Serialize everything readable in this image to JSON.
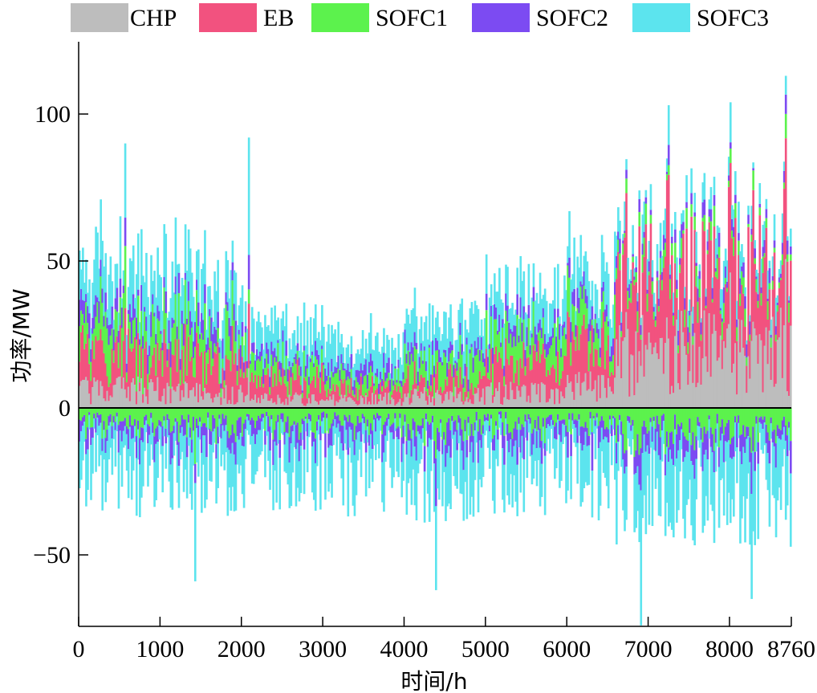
{
  "chart_data": {
    "type": "bar",
    "subtype": "stacked-positive-negative",
    "xlabel": "时间/h",
    "ylabel": "功率/MW",
    "xlim": [
      0,
      8760
    ],
    "ylim": [
      -74,
      125
    ],
    "x_ticks": [
      0,
      1000,
      2000,
      3000,
      4000,
      5000,
      6000,
      7000,
      8000,
      8760
    ],
    "x_tick_labels": [
      "0",
      "1000",
      "2000",
      "3000",
      "4000",
      "5000",
      "6000",
      "7000",
      "8000",
      "8760"
    ],
    "y_ticks": [
      -50,
      0,
      50,
      100
    ],
    "y_tick_labels": [
      "−50",
      "0",
      "50",
      "100"
    ],
    "legend_position": "top",
    "series": [
      {
        "name": "CHP",
        "color": "#bdbdbd"
      },
      {
        "name": "EB",
        "color": "#f2527f"
      },
      {
        "name": "SOFC1",
        "color": "#5cf24d"
      },
      {
        "name": "SOFC2",
        "color": "#7c4bf2"
      },
      {
        "name": "SOFC3",
        "color": "#5ce4ee"
      }
    ],
    "segments": [
      {
        "x_range": [
          0,
          1000
        ],
        "CHP": 6,
        "EB": 12,
        "SOFC1": 10,
        "SOFC2": 5,
        "SOFC3": 13,
        "SOFC_neg": -22
      },
      {
        "x_range": [
          1000,
          2000
        ],
        "CHP": 5,
        "EB": 12,
        "SOFC1": 10,
        "SOFC2": 5,
        "SOFC3": 13,
        "SOFC_neg": -22
      },
      {
        "x_range": [
          2000,
          3000
        ],
        "CHP": 3,
        "EB": 7,
        "SOFC1": 6,
        "SOFC2": 3,
        "SOFC3": 9,
        "SOFC_neg": -21
      },
      {
        "x_range": [
          3000,
          4000
        ],
        "CHP": 3,
        "EB": 4,
        "SOFC1": 4,
        "SOFC2": 3,
        "SOFC3": 8,
        "SOFC_neg": -22
      },
      {
        "x_range": [
          4000,
          5000
        ],
        "CHP": 4,
        "EB": 6,
        "SOFC1": 8,
        "SOFC2": 3,
        "SOFC3": 9,
        "SOFC_neg": -23
      },
      {
        "x_range": [
          5000,
          6000
        ],
        "CHP": 5,
        "EB": 9,
        "SOFC1": 9,
        "SOFC2": 4,
        "SOFC3": 9,
        "SOFC_neg": -22
      },
      {
        "x_range": [
          6000,
          6600
        ],
        "CHP": 7,
        "EB": 13,
        "SOFC1": 9,
        "SOFC2": 4,
        "SOFC3": 10,
        "SOFC_neg": -23
      },
      {
        "x_range": [
          6600,
          8760
        ],
        "CHP": 19,
        "EB": 26,
        "SOFC1": 4,
        "SOFC2": 3,
        "SOFC3": 6,
        "SOFC_neg": -28
      }
    ],
    "peaks": [
      {
        "x": 2070,
        "y": 92
      },
      {
        "x": 7230,
        "y": 103
      },
      {
        "x": 8000,
        "y": 104
      },
      {
        "x": 8680,
        "y": 113
      },
      {
        "x": 550,
        "y": 90
      },
      {
        "x": 4370,
        "y": -62
      },
      {
        "x": 6890,
        "y": -74
      },
      {
        "x": 1420,
        "y": -59
      },
      {
        "x": 8250,
        "y": -65
      }
    ]
  }
}
